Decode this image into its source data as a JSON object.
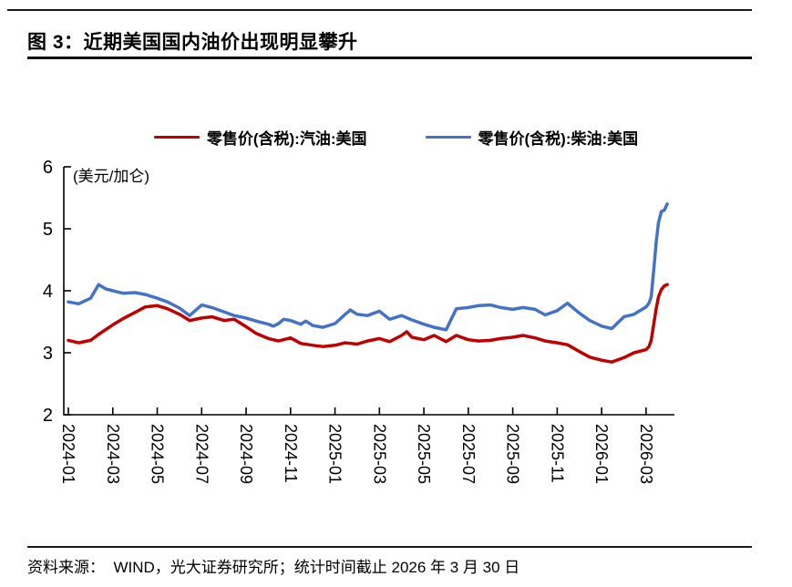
{
  "page": {
    "title": "图 3：近期美国国内油价出现明显攀升",
    "source_note": "资料来源：  WIND，光大证券研究所；统计时间截止 2026 年 3 月 30 日"
  },
  "colors": {
    "gasoline": "#C00000",
    "diesel": "#4472C4",
    "axis": "#000000"
  },
  "chart_data": {
    "type": "line",
    "title": "",
    "unit_label": "(美元/加仑)",
    "ylim": [
      2,
      6
    ],
    "y_ticks": [
      2,
      3,
      4,
      5,
      6
    ],
    "x_ticks": [
      "2024-01",
      "2024-03",
      "2024-05",
      "2024-07",
      "2024-09",
      "2024-11",
      "2025-01",
      "2025-03",
      "2025-05",
      "2025-07",
      "2025-09",
      "2025-11",
      "2026-01",
      "2026-03"
    ],
    "grid": false,
    "legend_position": "top",
    "series": [
      {
        "name": "零售价(含税):汽油:美国",
        "color": "#C00000",
        "points": [
          [
            "2024-01-01",
            3.2
          ],
          [
            "2024-01-15",
            3.16
          ],
          [
            "2024-02-01",
            3.2
          ],
          [
            "2024-02-15",
            3.32
          ],
          [
            "2024-03-01",
            3.45
          ],
          [
            "2024-03-15",
            3.55
          ],
          [
            "2024-04-01",
            3.65
          ],
          [
            "2024-04-15",
            3.74
          ],
          [
            "2024-05-01",
            3.76
          ],
          [
            "2024-05-15",
            3.71
          ],
          [
            "2024-06-01",
            3.62
          ],
          [
            "2024-06-15",
            3.52
          ],
          [
            "2024-07-01",
            3.56
          ],
          [
            "2024-07-15",
            3.58
          ],
          [
            "2024-08-01",
            3.52
          ],
          [
            "2024-08-15",
            3.54
          ],
          [
            "2024-09-01",
            3.42
          ],
          [
            "2024-09-15",
            3.31
          ],
          [
            "2024-10-01",
            3.23
          ],
          [
            "2024-10-15",
            3.19
          ],
          [
            "2024-11-01",
            3.24
          ],
          [
            "2024-11-15",
            3.15
          ],
          [
            "2024-12-01",
            3.12
          ],
          [
            "2024-12-15",
            3.1
          ],
          [
            "2025-01-01",
            3.12
          ],
          [
            "2025-01-15",
            3.16
          ],
          [
            "2025-02-01",
            3.14
          ],
          [
            "2025-02-15",
            3.19
          ],
          [
            "2025-03-01",
            3.23
          ],
          [
            "2025-03-15",
            3.18
          ],
          [
            "2025-04-01",
            3.28
          ],
          [
            "2025-04-08",
            3.34
          ],
          [
            "2025-04-15",
            3.25
          ],
          [
            "2025-05-01",
            3.21
          ],
          [
            "2025-05-15",
            3.28
          ],
          [
            "2025-06-01",
            3.18
          ],
          [
            "2025-06-15",
            3.28
          ],
          [
            "2025-07-01",
            3.21
          ],
          [
            "2025-07-15",
            3.19
          ],
          [
            "2025-08-01",
            3.2
          ],
          [
            "2025-08-15",
            3.23
          ],
          [
            "2025-09-01",
            3.25
          ],
          [
            "2025-09-15",
            3.28
          ],
          [
            "2025-10-01",
            3.24
          ],
          [
            "2025-10-15",
            3.19
          ],
          [
            "2025-11-01",
            3.16
          ],
          [
            "2025-11-15",
            3.13
          ],
          [
            "2025-12-01",
            3.02
          ],
          [
            "2025-12-15",
            2.93
          ],
          [
            "2026-01-01",
            2.88
          ],
          [
            "2026-01-15",
            2.85
          ],
          [
            "2026-02-01",
            2.92
          ],
          [
            "2026-02-15",
            3.0
          ],
          [
            "2026-03-01",
            3.05
          ],
          [
            "2026-03-05",
            3.1
          ],
          [
            "2026-03-08",
            3.2
          ],
          [
            "2026-03-12",
            3.5
          ],
          [
            "2026-03-15",
            3.72
          ],
          [
            "2026-03-18",
            3.9
          ],
          [
            "2026-03-22",
            4.02
          ],
          [
            "2026-03-26",
            4.08
          ],
          [
            "2026-03-30",
            4.1
          ]
        ]
      },
      {
        "name": "零售价(含税):柴油:美国",
        "color": "#4472C4",
        "points": [
          [
            "2024-01-01",
            3.82
          ],
          [
            "2024-01-15",
            3.79
          ],
          [
            "2024-02-01",
            3.88
          ],
          [
            "2024-02-12",
            4.1
          ],
          [
            "2024-02-22",
            4.03
          ],
          [
            "2024-03-01",
            4.0
          ],
          [
            "2024-03-15",
            3.96
          ],
          [
            "2024-04-01",
            3.97
          ],
          [
            "2024-04-15",
            3.94
          ],
          [
            "2024-05-01",
            3.88
          ],
          [
            "2024-05-15",
            3.82
          ],
          [
            "2024-06-01",
            3.72
          ],
          [
            "2024-06-15",
            3.6
          ],
          [
            "2024-07-01",
            3.77
          ],
          [
            "2024-07-15",
            3.73
          ],
          [
            "2024-08-01",
            3.66
          ],
          [
            "2024-08-15",
            3.6
          ],
          [
            "2024-09-01",
            3.56
          ],
          [
            "2024-09-15",
            3.51
          ],
          [
            "2024-10-01",
            3.46
          ],
          [
            "2024-10-08",
            3.43
          ],
          [
            "2024-10-15",
            3.47
          ],
          [
            "2024-10-22",
            3.54
          ],
          [
            "2024-11-01",
            3.52
          ],
          [
            "2024-11-15",
            3.46
          ],
          [
            "2024-11-22",
            3.51
          ],
          [
            "2024-12-01",
            3.44
          ],
          [
            "2024-12-15",
            3.41
          ],
          [
            "2025-01-01",
            3.47
          ],
          [
            "2025-01-15",
            3.62
          ],
          [
            "2025-01-22",
            3.69
          ],
          [
            "2025-02-01",
            3.62
          ],
          [
            "2025-02-15",
            3.6
          ],
          [
            "2025-03-01",
            3.67
          ],
          [
            "2025-03-15",
            3.54
          ],
          [
            "2025-04-01",
            3.6
          ],
          [
            "2025-04-15",
            3.53
          ],
          [
            "2025-05-01",
            3.46
          ],
          [
            "2025-05-15",
            3.41
          ],
          [
            "2025-06-01",
            3.37
          ],
          [
            "2025-06-15",
            3.71
          ],
          [
            "2025-07-01",
            3.73
          ],
          [
            "2025-07-15",
            3.76
          ],
          [
            "2025-08-01",
            3.77
          ],
          [
            "2025-08-15",
            3.73
          ],
          [
            "2025-09-01",
            3.7
          ],
          [
            "2025-09-15",
            3.73
          ],
          [
            "2025-10-01",
            3.7
          ],
          [
            "2025-10-15",
            3.61
          ],
          [
            "2025-11-01",
            3.68
          ],
          [
            "2025-11-15",
            3.8
          ],
          [
            "2025-12-01",
            3.64
          ],
          [
            "2025-12-15",
            3.52
          ],
          [
            "2026-01-01",
            3.43
          ],
          [
            "2026-01-15",
            3.39
          ],
          [
            "2026-02-01",
            3.58
          ],
          [
            "2026-02-15",
            3.62
          ],
          [
            "2026-03-01",
            3.74
          ],
          [
            "2026-03-05",
            3.8
          ],
          [
            "2026-03-08",
            3.9
          ],
          [
            "2026-03-12",
            4.4
          ],
          [
            "2026-03-15",
            4.8
          ],
          [
            "2026-03-18",
            5.1
          ],
          [
            "2026-03-22",
            5.28
          ],
          [
            "2026-03-26",
            5.3
          ],
          [
            "2026-03-30",
            5.4
          ]
        ]
      }
    ]
  }
}
